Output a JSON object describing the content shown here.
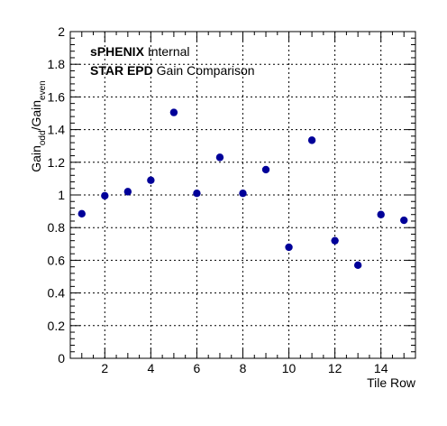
{
  "chart_data": {
    "type": "scatter",
    "title": "",
    "xlabel": "Tile Row",
    "ylabel": {
      "base1": "Gain",
      "sub1": "odd",
      "sep": "/",
      "base2": "Gain",
      "sub2": "even"
    },
    "xlim": [
      0.5,
      15.5
    ],
    "ylim": [
      0,
      2
    ],
    "grid": true,
    "x_ticks": [
      2,
      4,
      6,
      8,
      10,
      12,
      14
    ],
    "y_ticks": [
      0,
      0.2,
      0.4,
      0.6,
      0.8,
      1,
      1.2,
      1.4,
      1.6,
      1.8,
      2
    ],
    "annotations": [
      {
        "bold": "sPHENIX",
        "text": " Internal"
      },
      {
        "bold": "STAR EPD",
        "text": " Gain Comparison"
      }
    ],
    "series": [
      {
        "x": [
          1,
          2,
          3,
          4,
          5,
          6,
          7,
          8,
          9,
          10,
          11,
          12,
          13,
          14,
          15
        ],
        "y": [
          0.885,
          0.995,
          1.02,
          1.09,
          1.505,
          1.01,
          1.23,
          1.01,
          1.155,
          0.68,
          1.335,
          0.72,
          0.57,
          0.88,
          0.845
        ],
        "color": "#000099"
      }
    ]
  }
}
